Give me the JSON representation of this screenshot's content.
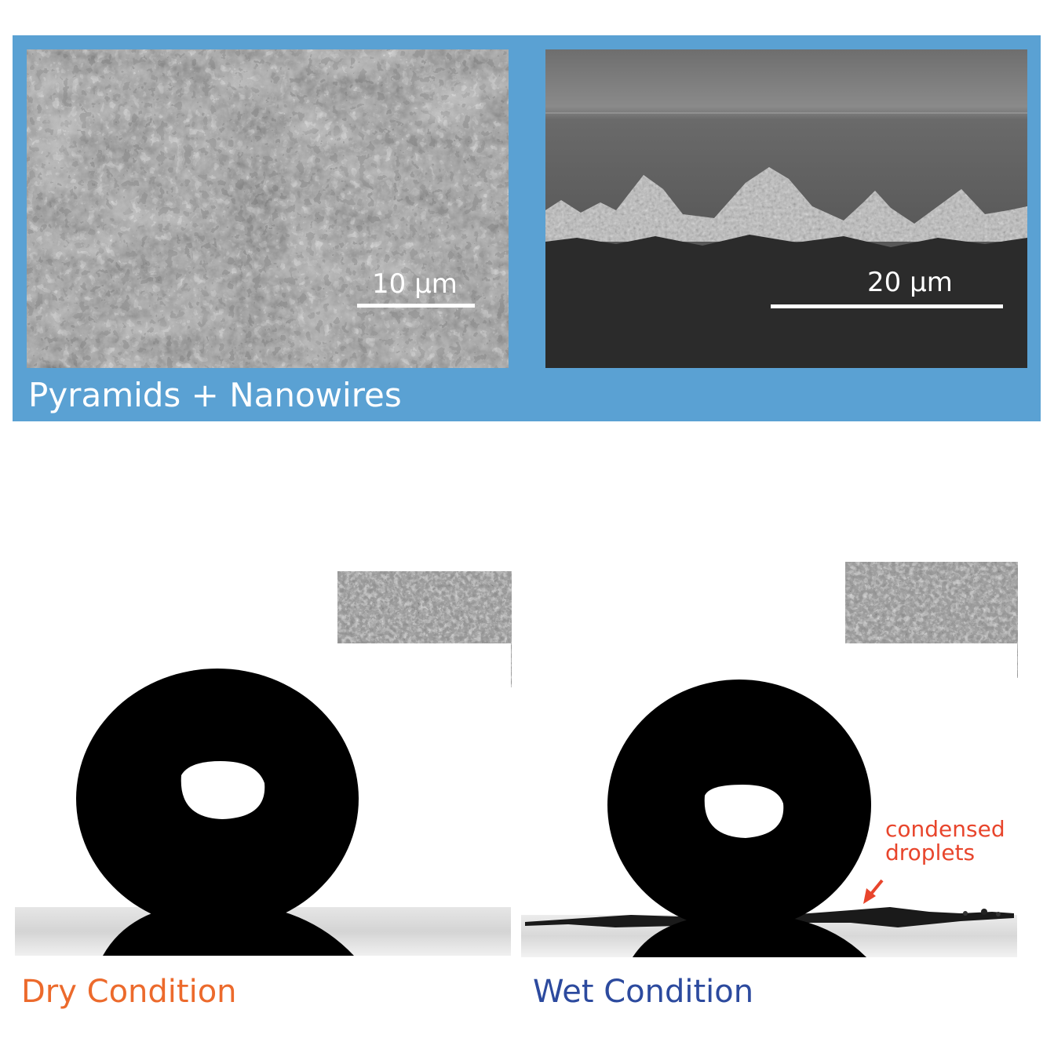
{
  "top_panel": {
    "caption": "Pyramids + Nanowires",
    "left_image": {
      "scale_label": "10 μm"
    },
    "right_image": {
      "scale_label": "20 μm"
    }
  },
  "bottom": {
    "dry": {
      "label": "Dry Condition"
    },
    "wet": {
      "label": "Wet Condition",
      "annotation_line1": "condensed",
      "annotation_line2": "droplets"
    }
  },
  "colors": {
    "panel_blue": "#5aa1d3",
    "dry_label": "#ec6a2c",
    "wet_label": "#2c4a9e",
    "annotation": "#e8452c"
  }
}
